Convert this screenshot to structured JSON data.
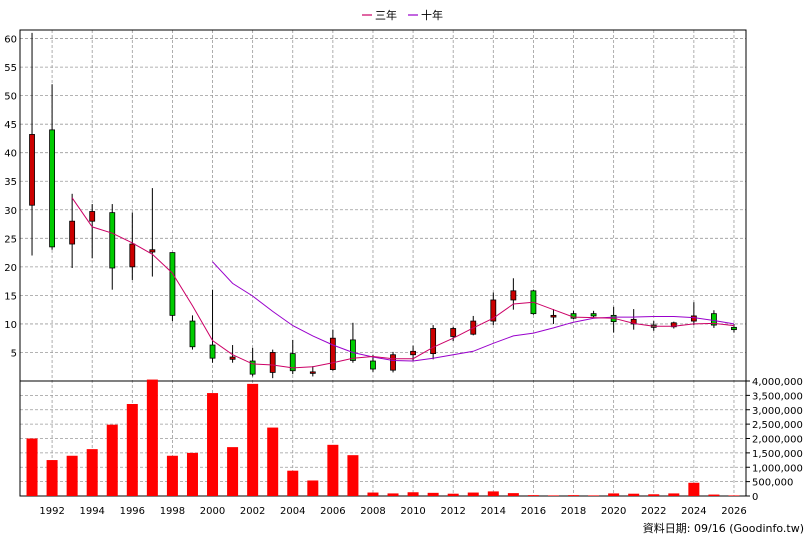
{
  "chart_data": {
    "type": "candlestick",
    "legend": [
      {
        "name": "三年",
        "color": "#cc0066"
      },
      {
        "name": "十年",
        "color": "#9900cc"
      }
    ],
    "source_note": "資料日期: 09/16 (Goodinfo.tw)",
    "colors": {
      "up": "#cc0000",
      "down": "#00cc00",
      "grid": "#9a9a9a",
      "ma3": "#cc0066",
      "ma10": "#9900cc",
      "volume": "#ff0000"
    },
    "price_axis": {
      "ticks": [
        5,
        10,
        15,
        20,
        25,
        30,
        35,
        40,
        45,
        50,
        55,
        60
      ],
      "range": [
        0,
        61.5
      ]
    },
    "volume_axis": {
      "ticks": [
        "0",
        "500,000",
        "1,000,000",
        "1,500,000",
        "2,000,000",
        "2,500,000",
        "3,000,000",
        "3,500,000",
        "4,000,000"
      ],
      "range": [
        0,
        4000000
      ]
    },
    "x_labels": [
      "1992",
      "1994",
      "1996",
      "1998",
      "2000",
      "2002",
      "2004",
      "2006",
      "2008",
      "2010",
      "2012",
      "2014",
      "2016",
      "2018",
      "2020",
      "2022",
      "2024",
      "2026"
    ],
    "years": [
      1991,
      1992,
      1993,
      1994,
      1995,
      1996,
      1997,
      1998,
      1999,
      2000,
      2001,
      2002,
      2003,
      2004,
      2005,
      2006,
      2007,
      2008,
      2009,
      2010,
      2011,
      2012,
      2013,
      2014,
      2015,
      2016,
      2017,
      2018,
      2019,
      2020,
      2021,
      2022,
      2023,
      2024,
      2025,
      2026
    ],
    "candles": [
      {
        "year": 1991,
        "open": 30.8,
        "high": 61,
        "low": 22,
        "close": 43.2
      },
      {
        "year": 1992,
        "open": 44,
        "high": 52,
        "low": 23,
        "close": 23.5
      },
      {
        "year": 1993,
        "open": 24,
        "high": 32.8,
        "low": 19.8,
        "close": 28
      },
      {
        "year": 1994,
        "open": 28,
        "high": 31,
        "low": 21.5,
        "close": 29.7
      },
      {
        "year": 1995,
        "open": 29.5,
        "high": 31,
        "low": 16,
        "close": 19.8
      },
      {
        "year": 1996,
        "open": 20,
        "high": 29.5,
        "low": 17.7,
        "close": 24
      },
      {
        "year": 1997,
        "open": 22.6,
        "high": 33.8,
        "low": 18.3,
        "close": 23
      },
      {
        "year": 1998,
        "open": 22.5,
        "high": 22.5,
        "low": 10.5,
        "close": 11.5
      },
      {
        "year": 1999,
        "open": 10.5,
        "high": 11.5,
        "low": 5.5,
        "close": 6
      },
      {
        "year": 2000,
        "open": 6.3,
        "high": 16,
        "low": 3.2,
        "close": 4
      },
      {
        "year": 2001,
        "open": 3.8,
        "high": 6.3,
        "low": 3.2,
        "close": 4.2
      },
      {
        "year": 2002,
        "open": 3.5,
        "high": 5.8,
        "low": 0.8,
        "close": 1.2
      },
      {
        "year": 2003,
        "open": 1.5,
        "high": 5.5,
        "low": 0.5,
        "close": 5
      },
      {
        "year": 2004,
        "open": 4.8,
        "high": 7.2,
        "low": 1.2,
        "close": 1.8
      },
      {
        "year": 2005,
        "open": 1.5,
        "high": 2.6,
        "low": 0.8,
        "close": 1.6
      },
      {
        "year": 2006,
        "open": 2,
        "high": 9,
        "low": 1.8,
        "close": 7.5
      },
      {
        "year": 2007,
        "open": 7.2,
        "high": 10.2,
        "low": 3.2,
        "close": 3.6
      },
      {
        "year": 2008,
        "open": 3.5,
        "high": 4.6,
        "low": 1.6,
        "close": 2.1
      },
      {
        "year": 2009,
        "open": 1.9,
        "high": 5.1,
        "low": 1.5,
        "close": 4.6
      },
      {
        "year": 2010,
        "open": 4.6,
        "high": 6.2,
        "low": 3.6,
        "close": 5.2
      },
      {
        "year": 2011,
        "open": 4.8,
        "high": 9.8,
        "low": 3.8,
        "close": 9.2
      },
      {
        "year": 2012,
        "open": 7.8,
        "high": 9.5,
        "low": 7,
        "close": 9.2
      },
      {
        "year": 2013,
        "open": 8.2,
        "high": 11.4,
        "low": 8,
        "close": 10.5
      },
      {
        "year": 2014,
        "open": 10.5,
        "high": 15.5,
        "low": 9.8,
        "close": 14.2
      },
      {
        "year": 2015,
        "open": 14.2,
        "high": 18,
        "low": 12.5,
        "close": 15.8
      },
      {
        "year": 2016,
        "open": 15.8,
        "high": 16,
        "low": 11.6,
        "close": 11.8
      },
      {
        "year": 2017,
        "open": 11.2,
        "high": 12.6,
        "low": 10,
        "close": 11.5
      },
      {
        "year": 2018,
        "open": 11.8,
        "high": 12.3,
        "low": 10.8,
        "close": 11
      },
      {
        "year": 2019,
        "open": 11.8,
        "high": 12.3,
        "low": 11,
        "close": 11.4
      },
      {
        "year": 2020,
        "open": 11.5,
        "high": 13,
        "low": 8.5,
        "close": 10.4
      },
      {
        "year": 2021,
        "open": 10,
        "high": 12.6,
        "low": 9,
        "close": 10.8
      },
      {
        "year": 2022,
        "open": 9.8,
        "high": 10.5,
        "low": 8.8,
        "close": 9.4
      },
      {
        "year": 2023,
        "open": 9.5,
        "high": 10.4,
        "low": 9.2,
        "close": 10.2
      },
      {
        "year": 2024,
        "open": 10.5,
        "high": 13.8,
        "low": 9.8,
        "close": 11.4
      },
      {
        "year": 2025,
        "open": 11.8,
        "high": 12.4,
        "low": 9.3,
        "close": 9.8
      },
      {
        "year": 2026,
        "open": 9.4,
        "high": 10,
        "low": 8.5,
        "close": 9
      }
    ],
    "ma3": [
      {
        "year": 1993,
        "value": 32.1
      },
      {
        "year": 1994,
        "value": 27
      },
      {
        "year": 1995,
        "value": 25.9
      },
      {
        "year": 1996,
        "value": 24.2
      },
      {
        "year": 1997,
        "value": 22.2
      },
      {
        "year": 1998,
        "value": 18.9
      },
      {
        "year": 1999,
        "value": 13.2
      },
      {
        "year": 2000,
        "value": 7.1
      },
      {
        "year": 2001,
        "value": 4.6
      },
      {
        "year": 2002,
        "value": 3
      },
      {
        "year": 2003,
        "value": 2.8
      },
      {
        "year": 2004,
        "value": 2.3
      },
      {
        "year": 2005,
        "value": 2.5
      },
      {
        "year": 2006,
        "value": 3.2
      },
      {
        "year": 2007,
        "value": 4
      },
      {
        "year": 2008,
        "value": 4.3
      },
      {
        "year": 2009,
        "value": 3.9
      },
      {
        "year": 2010,
        "value": 3.9
      },
      {
        "year": 2011,
        "value": 5.9
      },
      {
        "year": 2012,
        "value": 7.5
      },
      {
        "year": 2013,
        "value": 9.3
      },
      {
        "year": 2014,
        "value": 11
      },
      {
        "year": 2015,
        "value": 13.5
      },
      {
        "year": 2016,
        "value": 13.8
      },
      {
        "year": 2017,
        "value": 12.5
      },
      {
        "year": 2018,
        "value": 11.2
      },
      {
        "year": 2019,
        "value": 11.1
      },
      {
        "year": 2020,
        "value": 11
      },
      {
        "year": 2021,
        "value": 10.1
      },
      {
        "year": 2022,
        "value": 9.6
      },
      {
        "year": 2023,
        "value": 9.6
      },
      {
        "year": 2024,
        "value": 10
      },
      {
        "year": 2025,
        "value": 10.1
      },
      {
        "year": 2026,
        "value": 9.7
      }
    ],
    "ma10": [
      {
        "year": 2000,
        "value": 20.9
      },
      {
        "year": 2001,
        "value": 17.1
      },
      {
        "year": 2002,
        "value": 14.9
      },
      {
        "year": 2003,
        "value": 12.2
      },
      {
        "year": 2004,
        "value": 9.7
      },
      {
        "year": 2005,
        "value": 7.9
      },
      {
        "year": 2006,
        "value": 6.3
      },
      {
        "year": 2007,
        "value": 5
      },
      {
        "year": 2008,
        "value": 4.2
      },
      {
        "year": 2009,
        "value": 3.6
      },
      {
        "year": 2010,
        "value": 3.5
      },
      {
        "year": 2011,
        "value": 4
      },
      {
        "year": 2012,
        "value": 4.6
      },
      {
        "year": 2013,
        "value": 5.2
      },
      {
        "year": 2014,
        "value": 6.6
      },
      {
        "year": 2015,
        "value": 7.9
      },
      {
        "year": 2016,
        "value": 8.4
      },
      {
        "year": 2017,
        "value": 9.3
      },
      {
        "year": 2018,
        "value": 10.3
      },
      {
        "year": 2019,
        "value": 11
      },
      {
        "year": 2020,
        "value": 11.2
      },
      {
        "year": 2021,
        "value": 11.2
      },
      {
        "year": 2022,
        "value": 11.3
      },
      {
        "year": 2023,
        "value": 11.3
      },
      {
        "year": 2024,
        "value": 11.1
      },
      {
        "year": 2025,
        "value": 10.6
      },
      {
        "year": 2026,
        "value": 10
      }
    ],
    "volume": [
      {
        "year": 1991,
        "value": 2000000
      },
      {
        "year": 1992,
        "value": 1250000
      },
      {
        "year": 1993,
        "value": 1400000
      },
      {
        "year": 1994,
        "value": 1630000
      },
      {
        "year": 1995,
        "value": 2480000
      },
      {
        "year": 1996,
        "value": 3200000
      },
      {
        "year": 1997,
        "value": 4050000
      },
      {
        "year": 1998,
        "value": 1400000
      },
      {
        "year": 1999,
        "value": 1500000
      },
      {
        "year": 2000,
        "value": 3580000
      },
      {
        "year": 2001,
        "value": 1700000
      },
      {
        "year": 2002,
        "value": 3900000
      },
      {
        "year": 2003,
        "value": 2380000
      },
      {
        "year": 2004,
        "value": 880000
      },
      {
        "year": 2005,
        "value": 540000
      },
      {
        "year": 2006,
        "value": 1780000
      },
      {
        "year": 2007,
        "value": 1420000
      },
      {
        "year": 2008,
        "value": 120000
      },
      {
        "year": 2009,
        "value": 90000
      },
      {
        "year": 2010,
        "value": 130000
      },
      {
        "year": 2011,
        "value": 110000
      },
      {
        "year": 2012,
        "value": 80000
      },
      {
        "year": 2013,
        "value": 120000
      },
      {
        "year": 2014,
        "value": 160000
      },
      {
        "year": 2015,
        "value": 100000
      },
      {
        "year": 2016,
        "value": 30000
      },
      {
        "year": 2017,
        "value": 20000
      },
      {
        "year": 2018,
        "value": 30000
      },
      {
        "year": 2019,
        "value": 20000
      },
      {
        "year": 2020,
        "value": 90000
      },
      {
        "year": 2021,
        "value": 80000
      },
      {
        "year": 2022,
        "value": 60000
      },
      {
        "year": 2023,
        "value": 90000
      },
      {
        "year": 2024,
        "value": 460000
      },
      {
        "year": 2025,
        "value": 50000
      },
      {
        "year": 2026,
        "value": 20000
      }
    ]
  }
}
